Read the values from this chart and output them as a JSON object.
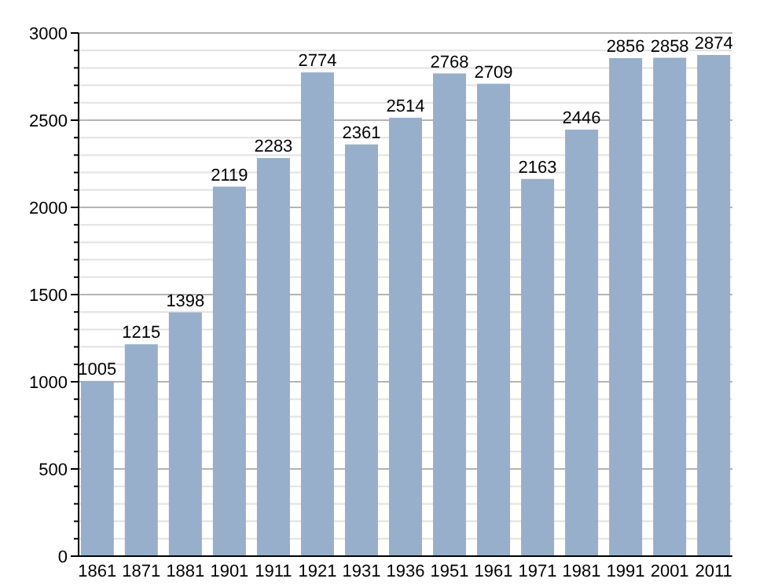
{
  "chart_data": {
    "type": "bar",
    "categories": [
      "1861",
      "1871",
      "1881",
      "1901",
      "1911",
      "1921",
      "1931",
      "1936",
      "1951",
      "1961",
      "1971",
      "1981",
      "1991",
      "2001",
      "2011"
    ],
    "values": [
      1005,
      1215,
      1398,
      2119,
      2283,
      2774,
      2361,
      2514,
      2768,
      2709,
      2163,
      2446,
      2856,
      2858,
      2874
    ],
    "color": "#97afcb",
    "ylim": [
      0,
      3000
    ],
    "yticks": [
      0,
      {
        "value": 100,
        "label": null
      },
      {
        "value": 200,
        "label": null
      },
      {
        "value": 300,
        "label": null
      },
      {
        "value": 400,
        "label": null
      },
      500,
      {
        "value": 600,
        "label": null
      },
      {
        "value": 700,
        "label": null
      },
      {
        "value": 800,
        "label": null
      },
      {
        "value": 900,
        "label": null
      },
      1000,
      {
        "value": 1100,
        "label": null
      },
      {
        "value": 1200,
        "label": null
      },
      {
        "value": 1300,
        "label": null
      },
      {
        "value": 1400,
        "label": null
      },
      1500,
      {
        "value": 1600,
        "label": null
      },
      {
        "value": 1700,
        "label": null
      },
      {
        "value": 1800,
        "label": null
      },
      {
        "value": 1900,
        "label": null
      },
      2000,
      {
        "value": 2100,
        "label": null
      },
      {
        "value": 2200,
        "label": null
      },
      {
        "value": 2300,
        "label": null
      },
      {
        "value": 2400,
        "label": null
      },
      2500,
      {
        "value": 2600,
        "label": null
      },
      {
        "value": 2700,
        "label": null
      },
      {
        "value": 2800,
        "label": null
      },
      {
        "value": 2900,
        "label": null
      },
      3000
    ],
    "grid": "y",
    "data_labels": true
  }
}
